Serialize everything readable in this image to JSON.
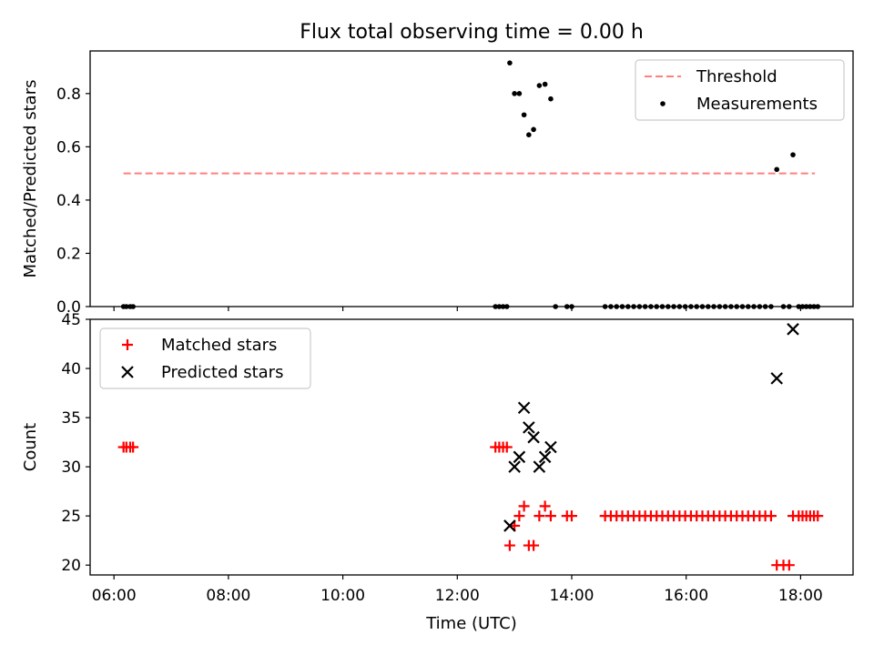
{
  "figure": {
    "title": "Flux total observing time = 0.00 h"
  },
  "chart_data": [
    {
      "type": "scatter",
      "panel": "top",
      "title": "Flux total observing time = 0.00 h",
      "xlabel": "",
      "ylabel": "Matched/Predicted stars",
      "xlim": [
        "05:35",
        "18:55"
      ],
      "ylim": [
        0,
        0.96
      ],
      "yticks": [
        0.0,
        0.2,
        0.4,
        0.6,
        0.8
      ],
      "ytick_labels": [
        "0.0",
        "0.2",
        "0.4",
        "0.6",
        "0.8"
      ],
      "legend": {
        "placement": "top-right",
        "entries": [
          "Threshold",
          "Measurements"
        ]
      },
      "threshold": {
        "name": "Threshold",
        "color": "#ff7f7f",
        "style": "dashed",
        "x": [
          "06:10",
          "18:15"
        ],
        "y": 0.5
      },
      "series": [
        {
          "name": "Measurements",
          "color": "#000000",
          "marker": "dot",
          "points": [
            [
              "06:10",
              0
            ],
            [
              "06:13",
              0
            ],
            [
              "06:17",
              0
            ],
            [
              "06:20",
              0
            ],
            [
              "12:40",
              0
            ],
            [
              "12:44",
              0
            ],
            [
              "12:48",
              0
            ],
            [
              "12:52",
              0
            ],
            [
              "12:55",
              0.915
            ],
            [
              "13:00",
              0.8
            ],
            [
              "13:05",
              0.8
            ],
            [
              "13:10",
              0.72
            ],
            [
              "13:15",
              0.645
            ],
            [
              "13:20",
              0.665
            ],
            [
              "13:26",
              0.83
            ],
            [
              "13:32",
              0.835
            ],
            [
              "13:38",
              0.78
            ],
            [
              "13:43",
              0
            ],
            [
              "13:55",
              0
            ],
            [
              "14:00",
              0
            ],
            [
              "14:35",
              0
            ],
            [
              "14:41",
              0
            ],
            [
              "14:47",
              0
            ],
            [
              "14:53",
              0
            ],
            [
              "14:59",
              0
            ],
            [
              "15:05",
              0
            ],
            [
              "15:11",
              0
            ],
            [
              "15:17",
              0
            ],
            [
              "15:23",
              0
            ],
            [
              "15:29",
              0
            ],
            [
              "15:35",
              0
            ],
            [
              "15:41",
              0
            ],
            [
              "15:47",
              0
            ],
            [
              "15:53",
              0
            ],
            [
              "15:59",
              0
            ],
            [
              "16:05",
              0
            ],
            [
              "16:11",
              0
            ],
            [
              "16:17",
              0
            ],
            [
              "16:23",
              0
            ],
            [
              "16:29",
              0
            ],
            [
              "16:35",
              0
            ],
            [
              "16:41",
              0
            ],
            [
              "16:47",
              0
            ],
            [
              "16:53",
              0
            ],
            [
              "16:59",
              0
            ],
            [
              "17:05",
              0
            ],
            [
              "17:11",
              0
            ],
            [
              "17:17",
              0
            ],
            [
              "17:23",
              0
            ],
            [
              "17:29",
              0
            ],
            [
              "17:35",
              0.515
            ],
            [
              "17:42",
              0
            ],
            [
              "17:48",
              0
            ],
            [
              "17:52",
              0.57
            ],
            [
              "17:58",
              0
            ],
            [
              "18:02",
              0
            ],
            [
              "18:06",
              0
            ],
            [
              "18:10",
              0
            ],
            [
              "18:14",
              0
            ],
            [
              "18:18",
              0
            ]
          ]
        }
      ]
    },
    {
      "type": "scatter",
      "panel": "bottom",
      "title": "",
      "xlabel": "Time (UTC)",
      "ylabel": "Count",
      "xlim": [
        "05:35",
        "18:55"
      ],
      "xticks": [
        "06:00",
        "08:00",
        "10:00",
        "12:00",
        "14:00",
        "16:00",
        "18:00"
      ],
      "ylim": [
        19,
        45
      ],
      "yticks": [
        20,
        25,
        30,
        35,
        40,
        45
      ],
      "ytick_labels": [
        "20",
        "25",
        "30",
        "35",
        "40",
        "45"
      ],
      "legend": {
        "placement": "top-left",
        "entries": [
          "Matched stars",
          "Predicted stars"
        ]
      },
      "series": [
        {
          "name": "Matched stars",
          "color": "#ff0000",
          "marker": "plus",
          "points": [
            [
              "06:10",
              32
            ],
            [
              "06:13",
              32
            ],
            [
              "06:17",
              32
            ],
            [
              "06:20",
              32
            ],
            [
              "12:40",
              32
            ],
            [
              "12:44",
              32
            ],
            [
              "12:48",
              32
            ],
            [
              "12:52",
              32
            ],
            [
              "12:55",
              22
            ],
            [
              "13:00",
              24
            ],
            [
              "13:05",
              25
            ],
            [
              "13:10",
              26
            ],
            [
              "13:15",
              22
            ],
            [
              "13:20",
              22
            ],
            [
              "13:26",
              25
            ],
            [
              "13:32",
              26
            ],
            [
              "13:38",
              25
            ],
            [
              "13:55",
              25
            ],
            [
              "14:00",
              25
            ],
            [
              "14:35",
              25
            ],
            [
              "14:41",
              25
            ],
            [
              "14:47",
              25
            ],
            [
              "14:53",
              25
            ],
            [
              "14:59",
              25
            ],
            [
              "15:05",
              25
            ],
            [
              "15:11",
              25
            ],
            [
              "15:17",
              25
            ],
            [
              "15:23",
              25
            ],
            [
              "15:29",
              25
            ],
            [
              "15:35",
              25
            ],
            [
              "15:41",
              25
            ],
            [
              "15:47",
              25
            ],
            [
              "15:53",
              25
            ],
            [
              "15:59",
              25
            ],
            [
              "16:05",
              25
            ],
            [
              "16:11",
              25
            ],
            [
              "16:17",
              25
            ],
            [
              "16:23",
              25
            ],
            [
              "16:29",
              25
            ],
            [
              "16:35",
              25
            ],
            [
              "16:41",
              25
            ],
            [
              "16:47",
              25
            ],
            [
              "16:53",
              25
            ],
            [
              "16:59",
              25
            ],
            [
              "17:05",
              25
            ],
            [
              "17:11",
              25
            ],
            [
              "17:17",
              25
            ],
            [
              "17:23",
              25
            ],
            [
              "17:29",
              25
            ],
            [
              "17:35",
              20
            ],
            [
              "17:42",
              20
            ],
            [
              "17:48",
              20
            ],
            [
              "17:52",
              25
            ],
            [
              "17:58",
              25
            ],
            [
              "18:02",
              25
            ],
            [
              "18:06",
              25
            ],
            [
              "18:10",
              25
            ],
            [
              "18:14",
              25
            ],
            [
              "18:18",
              25
            ]
          ]
        },
        {
          "name": "Predicted stars",
          "color": "#000000",
          "marker": "x",
          "points": [
            [
              "12:55",
              24
            ],
            [
              "13:00",
              30
            ],
            [
              "13:05",
              31
            ],
            [
              "13:10",
              36
            ],
            [
              "13:15",
              34
            ],
            [
              "13:20",
              33
            ],
            [
              "13:26",
              30
            ],
            [
              "13:32",
              31
            ],
            [
              "13:38",
              32
            ],
            [
              "17:35",
              39
            ],
            [
              "17:52",
              44
            ]
          ]
        }
      ]
    }
  ]
}
